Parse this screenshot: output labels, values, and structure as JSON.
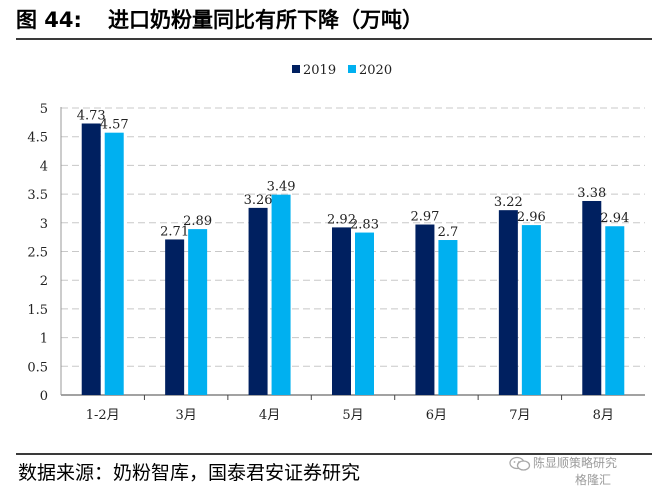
{
  "figure": {
    "label": "图 44:",
    "title": "进口奶粉量同比有所下降（万吨）"
  },
  "source": "数据来源：奶粉智库，国泰君安证券研究",
  "watermark": {
    "line1": "陈显顺策略研究",
    "line2": "格隆汇"
  },
  "chart_data": {
    "type": "bar",
    "categories": [
      "1-2月",
      "3月",
      "4月",
      "5月",
      "6月",
      "7月",
      "8月"
    ],
    "series": [
      {
        "name": "2019",
        "color": "#002060",
        "values": [
          4.73,
          2.71,
          3.26,
          2.92,
          2.97,
          3.22,
          3.38
        ],
        "labels": [
          "4.73",
          "2.71",
          "3.26",
          "2.92",
          "2.97",
          "3.22",
          "3.38"
        ]
      },
      {
        "name": "2020",
        "color": "#00B0F0",
        "values": [
          4.57,
          2.89,
          3.49,
          2.83,
          2.7,
          2.96,
          2.94
        ],
        "labels": [
          "4.57",
          "2.89",
          "3.49",
          "2.83",
          "2.7",
          "2.96",
          "2.94"
        ]
      }
    ],
    "ylim": [
      0,
      5
    ],
    "yticks": [
      "0",
      "0.5",
      "1",
      "1.5",
      "2",
      "2.5",
      "3",
      "3.5",
      "4",
      "4.5",
      "5"
    ],
    "grid": true,
    "legend_position": "top-center",
    "xlabel": "",
    "ylabel": ""
  }
}
